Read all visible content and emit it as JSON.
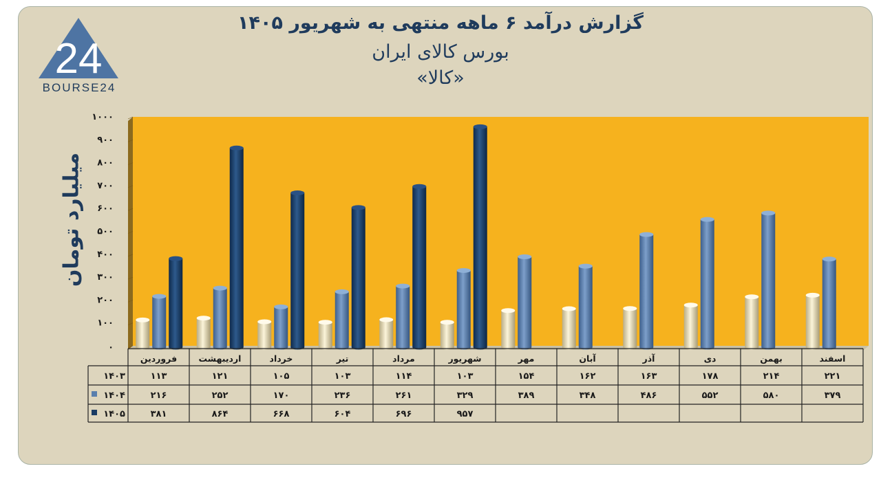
{
  "header": {
    "line1": "گزارش  درآمد ۶ ماهه منتهی به شهریور ۱۴۰۵",
    "line2": "بورس کالای ایران",
    "line3": "«کالا»"
  },
  "logo": {
    "text": "BOURSE24",
    "mark": "24"
  },
  "colors": {
    "s1403": "#f1e7c3",
    "s1404": "#5a7fad",
    "s1405": "#1a3c64",
    "plot_bg": "#f6b21e"
  },
  "chart_data": {
    "type": "bar",
    "ylabel": "میلیارد تومان",
    "ylim": [
      0,
      1000
    ],
    "yticks": [
      "۰",
      "۱۰۰",
      "۲۰۰",
      "۳۰۰",
      "۴۰۰",
      "۵۰۰",
      "۶۰۰",
      "۷۰۰",
      "۸۰۰",
      "۹۰۰",
      "۱۰۰۰"
    ],
    "categories": [
      "فروردین",
      "اردیبهشت",
      "خرداد",
      "تیر",
      "مرداد",
      "شهریور",
      "مهر",
      "آبان",
      "آذر",
      "دی",
      "بهمن",
      "اسفند"
    ],
    "series": [
      {
        "name": "۱۴۰۳",
        "values": [
          113,
          121,
          105,
          103,
          114,
          103,
          154,
          162,
          163,
          178,
          214,
          221
        ],
        "labels": [
          "۱۱۳",
          "۱۲۱",
          "۱۰۵",
          "۱۰۳",
          "۱۱۴",
          "۱۰۳",
          "۱۵۴",
          "۱۶۲",
          "۱۶۳",
          "۱۷۸",
          "۲۱۴",
          "۲۲۱"
        ]
      },
      {
        "name": "۱۴۰۴",
        "values": [
          216,
          252,
          170,
          236,
          261,
          329,
          389,
          348,
          486,
          552,
          580,
          379
        ],
        "labels": [
          "۲۱۶",
          "۲۵۲",
          "۱۷۰",
          "۲۳۶",
          "۲۶۱",
          "۳۲۹",
          "۳۸۹",
          "۳۴۸",
          "۴۸۶",
          "۵۵۲",
          "۵۸۰",
          "۳۷۹"
        ]
      },
      {
        "name": "۱۴۰۵",
        "values": [
          381,
          864,
          668,
          604,
          696,
          957,
          null,
          null,
          null,
          null,
          null,
          null
        ],
        "labels": [
          "۳۸۱",
          "۸۶۴",
          "۶۶۸",
          "۶۰۴",
          "۶۹۶",
          "۹۵۷",
          "",
          "",
          "",
          "",
          "",
          ""
        ]
      }
    ]
  }
}
